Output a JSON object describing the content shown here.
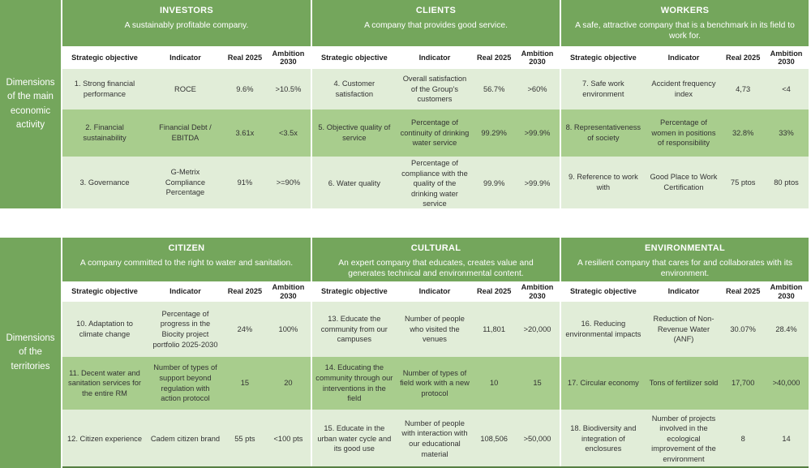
{
  "colors": {
    "header_green": "#74A65C",
    "band_dark": "#A8CD8D",
    "band_light": "#E1EDD8",
    "header_text": "#FFFFFF",
    "body_text": "#333333"
  },
  "column_headers": [
    "Strategic objective",
    "Indicator",
    "Real 2025",
    "Ambition 2030"
  ],
  "tables": [
    {
      "row_label": "Dimensions of the main economic activity",
      "groups": [
        {
          "title": "INVESTORS",
          "subtitle": "A sustainably profitable company.",
          "rows": [
            {
              "objective": "1. Strong financial performance",
              "indicator": "ROCE",
              "real": "9.6%",
              "ambition": ">10.5%"
            },
            {
              "objective": "2. Financial sustainability",
              "indicator": "Financial Debt / EBITDA",
              "real": "3.61x",
              "ambition": "<3.5x"
            },
            {
              "objective": "3. Governance",
              "indicator": "G-Metrix Compliance Percentage",
              "real": "91%",
              "ambition": ">=90%"
            }
          ]
        },
        {
          "title": "CLIENTS",
          "subtitle": "A company that provides good service.",
          "rows": [
            {
              "objective": "4. Customer satisfaction",
              "indicator": "Overall satisfaction of the Group's customers",
              "real": "56.7%",
              "ambition": ">60%"
            },
            {
              "objective": "5. Objective quality of service",
              "indicator": "Percentage of continuity of drinking water service",
              "real": "99.29%",
              "ambition": ">99.9%"
            },
            {
              "objective": "6. Water quality",
              "indicator": "Percentage of compliance with the quality of the drinking water service",
              "real": "99.9%",
              "ambition": ">99.9%"
            }
          ]
        },
        {
          "title": "WORKERS",
          "subtitle": "A safe, attractive company that is a benchmark in its field to work for.",
          "rows": [
            {
              "objective": "7. Safe work environment",
              "indicator": "Accident frequency index",
              "real": "4,73",
              "ambition": "<4"
            },
            {
              "objective": "8. Representativeness of society",
              "indicator": "Percentage of women in positions of responsibility",
              "real": "32.8%",
              "ambition": "33%"
            },
            {
              "objective": "9. Reference to work with",
              "indicator": "Good Place to Work Certification",
              "real": "75 ptos",
              "ambition": "80 ptos"
            }
          ]
        }
      ]
    },
    {
      "row_label": "Dimensions of the territories",
      "groups": [
        {
          "title": "CITIZEN",
          "subtitle": "A company committed to the right to water and sanitation.",
          "rows": [
            {
              "objective": "10. Adaptation to climate change",
              "indicator": "Percentage of progress in the Biocity project portfolio 2025-2030",
              "real": "24%",
              "ambition": "100%"
            },
            {
              "objective": "11. Decent water and sanitation services for the entire RM",
              "indicator": "Number of types of support beyond regulation with action protocol",
              "real": "15",
              "ambition": "20"
            },
            {
              "objective": "12. Citizen experience",
              "indicator": "Cadem citizen brand",
              "real": "55 pts",
              "ambition": "<100 pts"
            }
          ]
        },
        {
          "title": "CULTURAL",
          "subtitle": "An expert company that educates, creates value and generates technical and environmental content.",
          "rows": [
            {
              "objective": "13. Educate the community from our campuses",
              "indicator": "Number of people who visited the venues",
              "real": "11,801",
              "ambition": ">20,000"
            },
            {
              "objective": "14. Educating the community through our interventions in the field",
              "indicator": "Number of types of field work with a new protocol",
              "real": "10",
              "ambition": "15"
            },
            {
              "objective": "15. Educate in the urban water cycle and its good use",
              "indicator": "Number of people with interaction with our educational material",
              "real": "108,506",
              "ambition": ">50,000"
            }
          ]
        },
        {
          "title": "ENVIRONMENTAL",
          "subtitle": "A resilient company that cares for and collaborates with its environment.",
          "rows": [
            {
              "objective": "16. Reducing environmental impacts",
              "indicator": "Reduction of Non-Revenue Water (ANF)",
              "real": "30.07%",
              "ambition": "28.4%"
            },
            {
              "objective": "17. Circular economy",
              "indicator": "Tons of fertilizer sold",
              "real": "17,700",
              "ambition": ">40,000"
            },
            {
              "objective": "18. Biodiversity and integration of enclosures",
              "indicator": "Number of projects involved in the ecological improvement of the environment",
              "real": "8",
              "ambition": "14"
            }
          ]
        }
      ]
    }
  ]
}
